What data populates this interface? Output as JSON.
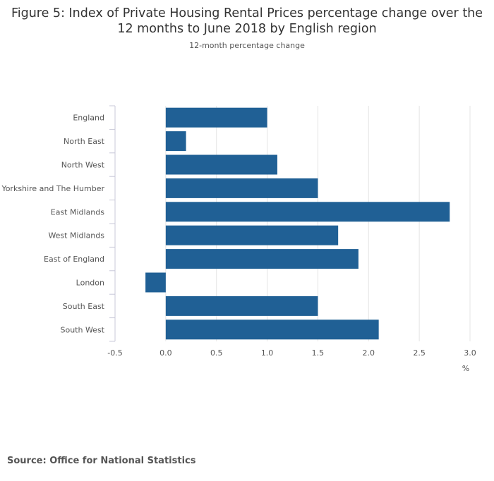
{
  "chart_data": {
    "type": "bar",
    "orientation": "horizontal",
    "title_line1": "Figure 5: Index of Private Housing Rental Prices percentage change over the",
    "title_line2": "12 months to June 2018 by English region",
    "subtitle": "12-month percentage change",
    "categories": [
      "England",
      "North East",
      "North West",
      "Yorkshire and The Humber",
      "East Midlands",
      "West Midlands",
      "East of England",
      "London",
      "South East",
      "South West"
    ],
    "values": [
      1.0,
      0.2,
      1.1,
      1.5,
      2.8,
      1.7,
      1.9,
      -0.2,
      1.5,
      2.1
    ],
    "xlim": [
      -0.5,
      3.0
    ],
    "xticks": [
      -0.5,
      0.0,
      0.5,
      1.0,
      1.5,
      2.0,
      2.5,
      3.0
    ],
    "xtick_labels": [
      "-0.5",
      "0.0",
      "0.5",
      "1.0",
      "1.5",
      "2.0",
      "2.5",
      "3.0"
    ],
    "xlabel": "%",
    "bar_color": "#206095",
    "grid": true
  },
  "footer": {
    "source": "Source: Office for National Statistics"
  }
}
